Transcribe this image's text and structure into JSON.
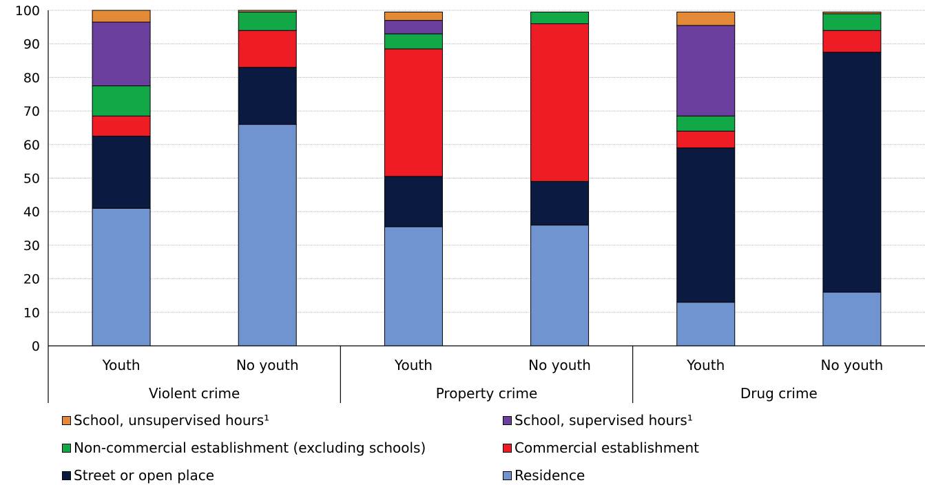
{
  "chart_data": {
    "type": "bar",
    "stacked": true,
    "ylim": [
      0,
      100
    ],
    "yticks": [
      "0",
      "10",
      "20",
      "30",
      "40",
      "50",
      "60",
      "70",
      "80",
      "90",
      "100"
    ],
    "grid": true,
    "legend_position": "bottom",
    "groups": [
      {
        "label": "Violent crime",
        "categories": [
          "Youth",
          "No youth"
        ]
      },
      {
        "label": "Property crime",
        "categories": [
          "Youth",
          "No youth"
        ]
      },
      {
        "label": "Drug crime",
        "categories": [
          "Youth",
          "No youth"
        ]
      }
    ],
    "categories": [
      "Violent crime - Youth",
      "Violent crime - No youth",
      "Property crime - Youth",
      "Property crime - No youth",
      "Drug crime - Youth",
      "Drug crime - No youth"
    ],
    "series": [
      {
        "name": "Residence",
        "color": "#7094D0",
        "values": [
          41,
          66,
          35.5,
          36,
          13,
          16
        ]
      },
      {
        "name": "Street or open place",
        "color": "#0A1A40",
        "values": [
          21.5,
          17,
          15,
          13,
          46,
          71.5
        ]
      },
      {
        "name": "Commercial establishment",
        "color": "#EE1C25",
        "values": [
          6,
          11,
          38,
          47,
          5,
          6.5
        ]
      },
      {
        "name": "Non-commercial establishment (excluding schools)",
        "color": "#12A848",
        "values": [
          9,
          5.5,
          4.5,
          3.5,
          4.5,
          5
        ]
      },
      {
        "name": "School, supervised hours¹",
        "color": "#6A3F9E",
        "values": [
          19,
          0,
          4,
          0,
          27,
          0
        ]
      },
      {
        "name": "School, unsupervised hours¹",
        "color": "#E28A35",
        "values": [
          3.5,
          0.5,
          2.5,
          0,
          4,
          0.5
        ]
      }
    ]
  },
  "legend": [
    {
      "label": "School, unsupervised hours¹",
      "color": "#E28A35"
    },
    {
      "label": "School, supervised hours¹",
      "color": "#6A3F9E"
    },
    {
      "label": "Non-commercial establishment (excluding schools)",
      "color": "#12A848"
    },
    {
      "label": "Commercial establishment",
      "color": "#EE1C25"
    },
    {
      "label": "Street or open place",
      "color": "#0A1A40"
    },
    {
      "label": "Residence",
      "color": "#7094D0"
    }
  ]
}
